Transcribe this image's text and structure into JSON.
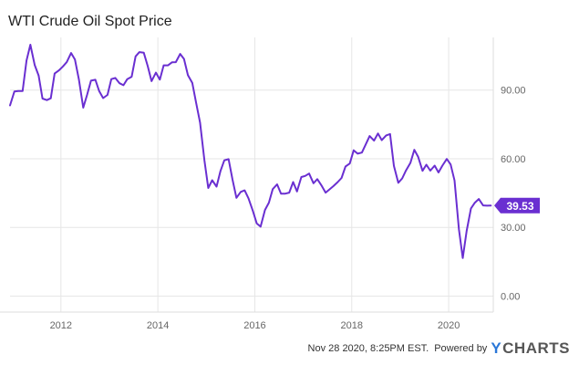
{
  "chart_data": {
    "type": "line",
    "title": "WTI Crude Oil Spot Price",
    "xlabel": "",
    "ylabel": "",
    "xlim": [
      2010.95,
      2020.92
    ],
    "ylim": [
      -7,
      113
    ],
    "x_tick_values": [
      2012,
      2014,
      2016,
      2018,
      2020
    ],
    "x_tick_labels": [
      "2012",
      "2014",
      "2016",
      "2018",
      "2020"
    ],
    "y_tick_values": [
      0,
      30,
      60,
      90
    ],
    "y_tick_labels": [
      "0.00",
      "30.00",
      "60.00",
      "90.00"
    ],
    "y_axis_position": "right",
    "grid": "vertical and horizontal",
    "series": [
      {
        "color": "#6a2fd1",
        "x": [
          2010.95,
          2011.04,
          2011.12,
          2011.21,
          2011.29,
          2011.37,
          2011.46,
          2011.54,
          2011.62,
          2011.71,
          2011.79,
          2011.87,
          2011.96,
          2012.04,
          2012.12,
          2012.21,
          2012.29,
          2012.37,
          2012.46,
          2012.54,
          2012.62,
          2012.71,
          2012.79,
          2012.87,
          2012.96,
          2013.04,
          2013.12,
          2013.21,
          2013.29,
          2013.37,
          2013.46,
          2013.54,
          2013.62,
          2013.71,
          2013.79,
          2013.87,
          2013.96,
          2014.04,
          2014.12,
          2014.21,
          2014.29,
          2014.37,
          2014.46,
          2014.54,
          2014.62,
          2014.71,
          2014.79,
          2014.87,
          2014.96,
          2015.04,
          2015.12,
          2015.21,
          2015.29,
          2015.37,
          2015.46,
          2015.54,
          2015.62,
          2015.71,
          2015.79,
          2015.87,
          2015.96,
          2016.04,
          2016.12,
          2016.21,
          2016.29,
          2016.37,
          2016.46,
          2016.54,
          2016.62,
          2016.71,
          2016.79,
          2016.87,
          2016.96,
          2017.04,
          2017.12,
          2017.21,
          2017.29,
          2017.37,
          2017.46,
          2017.54,
          2017.62,
          2017.71,
          2017.79,
          2017.87,
          2017.96,
          2018.04,
          2018.12,
          2018.21,
          2018.29,
          2018.37,
          2018.46,
          2018.54,
          2018.62,
          2018.71,
          2018.79,
          2018.87,
          2018.96,
          2019.04,
          2019.12,
          2019.21,
          2019.29,
          2019.37,
          2019.46,
          2019.54,
          2019.62,
          2019.71,
          2019.79,
          2019.87,
          2019.96,
          2020.04,
          2020.12,
          2020.21,
          2020.29,
          2020.37,
          2020.46,
          2020.54,
          2020.62,
          2020.71,
          2020.79,
          2020.87
        ],
        "values": [
          83.3,
          89.4,
          89.6,
          89.6,
          102.9,
          109.8,
          100.9,
          96.3,
          86.3,
          85.6,
          86.4,
          97.2,
          98.6,
          100.3,
          102.2,
          106.2,
          103.3,
          94.7,
          82.3,
          87.9,
          94.1,
          94.5,
          89.5,
          86.5,
          87.9,
          94.8,
          95.3,
          93.0,
          92.1,
          94.8,
          95.8,
          104.7,
          106.6,
          106.3,
          100.5,
          93.9,
          97.6,
          94.6,
          100.8,
          100.8,
          102.1,
          102.2,
          105.8,
          103.6,
          96.5,
          93.1,
          84.4,
          75.8,
          59.3,
          47.2,
          50.6,
          47.8,
          54.5,
          59.3,
          59.8,
          50.9,
          42.9,
          45.5,
          46.2,
          42.7,
          37.2,
          31.7,
          30.3,
          37.6,
          40.8,
          46.7,
          48.8,
          44.7,
          44.7,
          45.2,
          49.8,
          45.7,
          52.0,
          52.5,
          53.5,
          49.3,
          51.1,
          48.5,
          45.2,
          46.6,
          48.0,
          49.8,
          51.6,
          56.6,
          57.9,
          63.7,
          62.2,
          62.7,
          66.3,
          69.9,
          67.9,
          71.0,
          68.1,
          70.2,
          70.8,
          56.9,
          49.5,
          51.4,
          54.9,
          58.2,
          63.9,
          60.8,
          54.7,
          57.4,
          54.8,
          57.0,
          54.0,
          57.0,
          59.9,
          57.5,
          50.5,
          29.2,
          16.6,
          28.5,
          38.3,
          40.8,
          42.4,
          39.6,
          39.5,
          39.53
        ]
      }
    ],
    "last_value_label": "39.53"
  },
  "footer": {
    "timestamp": "Nov 28 2020, 8:25PM EST.",
    "powered_by": "Powered by",
    "brand_y": "Y",
    "brand_rest": "CHARTS"
  },
  "colors": {
    "series": "#6a2fd1",
    "brand_accent": "#2a77d8",
    "brand_text": "#565656",
    "grid": "#e6e6e6"
  }
}
